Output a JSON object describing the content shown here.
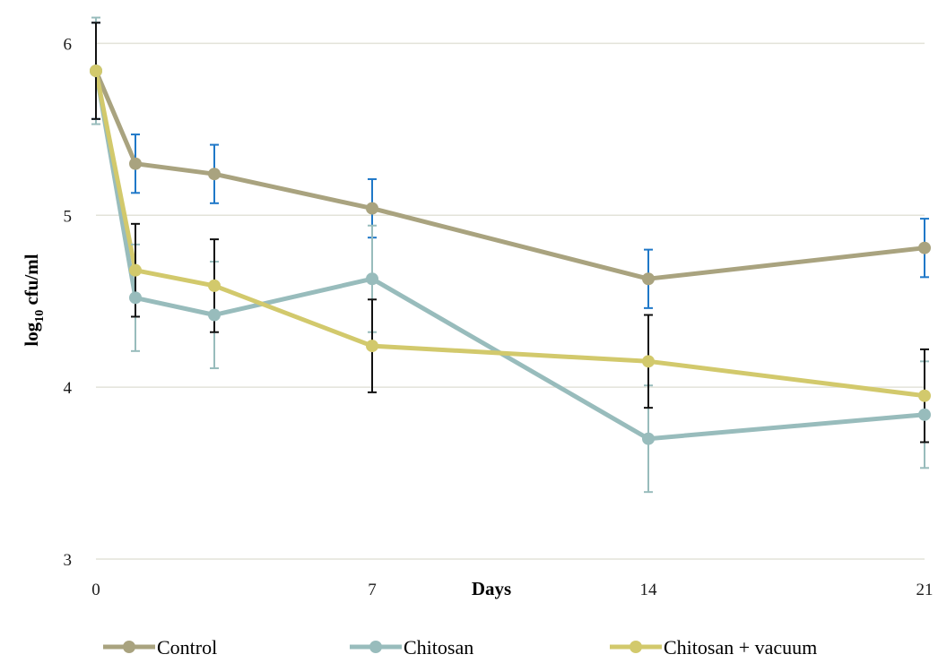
{
  "chart_data": {
    "type": "line",
    "xlabel": "Days",
    "ylabel_main": "log",
    "ylabel_sub": "10",
    "ylabel_rest": " cfu/ml",
    "x_ticks": [
      0,
      7,
      14,
      21
    ],
    "y_ticks": [
      3,
      4,
      5,
      6
    ],
    "xlim": [
      0,
      21
    ],
    "ylim": [
      3,
      6.2
    ],
    "grid": true,
    "legend_position": "bottom",
    "series": [
      {
        "name": "Control",
        "color": "#a9a37f",
        "error_color": "#1f78c8",
        "x": [
          0,
          1,
          3,
          7,
          14,
          21
        ],
        "y": [
          5.84,
          5.3,
          5.24,
          5.04,
          4.63,
          4.81
        ],
        "err": [
          0.28,
          0.17,
          0.17,
          0.17,
          0.17,
          0.17
        ]
      },
      {
        "name": "Chitosan",
        "color": "#98bcbc",
        "error_color": "#98bcbc",
        "x": [
          0,
          1,
          3,
          7,
          14,
          21
        ],
        "y": [
          5.84,
          4.52,
          4.42,
          4.63,
          3.7,
          3.84
        ],
        "err": [
          0.31,
          0.31,
          0.31,
          0.31,
          0.31,
          0.31
        ]
      },
      {
        "name": "Chitosan + vacuum",
        "color": "#d2c96c",
        "error_color": "#111111",
        "x": [
          0,
          1,
          3,
          7,
          14,
          21
        ],
        "y": [
          5.84,
          4.68,
          4.59,
          4.24,
          4.15,
          3.95
        ],
        "err": [
          0.28,
          0.27,
          0.27,
          0.27,
          0.27,
          0.27
        ]
      }
    ]
  }
}
